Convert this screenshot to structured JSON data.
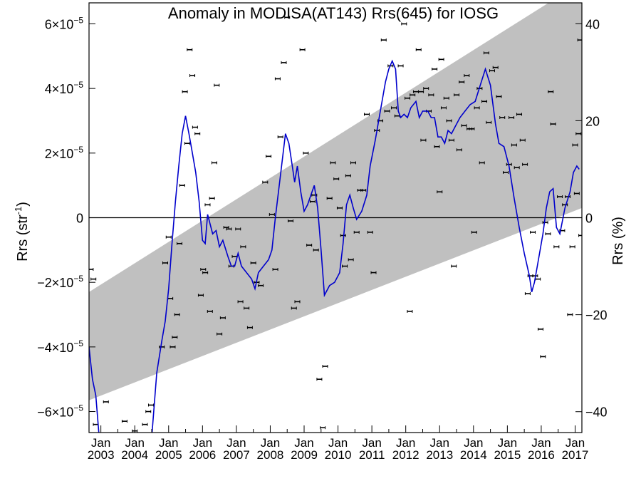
{
  "chart_data": {
    "type": "line",
    "title": "Anomaly in MODISA(AT143) Rrs(645) for IOSG",
    "ylabel": "Rrs (str",
    "ylabel_sup": "-1",
    "ylabel_right": "Rrs (%)",
    "ylim": [
      -6.65e-05,
      6.65e-05
    ],
    "ylim_right": [
      -44.3,
      44.3
    ],
    "x_range": [
      2002.65,
      2017.2
    ],
    "y_ticks": [
      {
        "value": 6e-05,
        "mantissa": "6",
        "sign": ""
      },
      {
        "value": 4e-05,
        "mantissa": "4",
        "sign": ""
      },
      {
        "value": 2e-05,
        "mantissa": "2",
        "sign": ""
      },
      {
        "value": 0,
        "label": "0"
      },
      {
        "value": -2e-05,
        "mantissa": "2",
        "sign": "−"
      },
      {
        "value": -4e-05,
        "mantissa": "4",
        "sign": "−"
      },
      {
        "value": -6e-05,
        "mantissa": "6",
        "sign": "−"
      }
    ],
    "y_tick_times": "×10",
    "y_tick_exp": "−5",
    "y_ticks_right": [
      {
        "value": 40,
        "label": "40"
      },
      {
        "value": 20,
        "label": "20"
      },
      {
        "value": 0,
        "label": "0"
      },
      {
        "value": -20,
        "label": "−20"
      },
      {
        "value": -40,
        "label": "−40"
      }
    ],
    "x_ticks": [
      {
        "x": 2003.0,
        "month": "Jan",
        "year": "2003"
      },
      {
        "x": 2004.0,
        "month": "Jan",
        "year": "2004"
      },
      {
        "x": 2005.0,
        "month": "Jan",
        "year": "2005"
      },
      {
        "x": 2006.0,
        "month": "Jan",
        "year": "2006"
      },
      {
        "x": 2007.0,
        "month": "Jan",
        "year": "2007"
      },
      {
        "x": 2008.0,
        "month": "Jan",
        "year": "2008"
      },
      {
        "x": 2009.0,
        "month": "Jan",
        "year": "2009"
      },
      {
        "x": 2010.0,
        "month": "Jan",
        "year": "2010"
      },
      {
        "x": 2011.0,
        "month": "Jan",
        "year": "2011"
      },
      {
        "x": 2012.0,
        "month": "Jan",
        "year": "2012"
      },
      {
        "x": 2013.0,
        "month": "Jan",
        "year": "2013"
      },
      {
        "x": 2014.0,
        "month": "Jan",
        "year": "2014"
      },
      {
        "x": 2015.0,
        "month": "Jan",
        "year": "2015"
      },
      {
        "x": 2016.0,
        "month": "Jan",
        "year": "2016"
      },
      {
        "x": 2017.0,
        "month": "Jan",
        "year": "2017"
      }
    ],
    "band": {
      "lower": [
        [
          2002.65,
          -5.65e-05
        ],
        [
          2017.2,
          3e-06
        ]
      ],
      "upper": [
        [
          2002.65,
          -2.3e-05
        ],
        [
          2017.2,
          7.3e-05
        ]
      ]
    },
    "zero_line": 0,
    "grid": false,
    "legend": "none",
    "colors": {
      "line": "#0000cc",
      "band": "#c0c0c0",
      "points": "#000000"
    },
    "smoothed_series": [
      [
        2002.65,
        -4e-05
      ],
      [
        2002.75,
        -5e-05
      ],
      [
        2002.85,
        -5.5e-05
      ],
      [
        2002.95,
        -6.8e-05
      ],
      [
        2004.5,
        -6.8e-05
      ],
      [
        2004.65,
        -4.8e-05
      ],
      [
        2004.8,
        -3.8e-05
      ],
      [
        2004.9,
        -3.2e-05
      ],
      [
        2005.0,
        -2.2e-05
      ],
      [
        2005.1,
        -8e-06
      ],
      [
        2005.2,
        5e-06
      ],
      [
        2005.3,
        1.6e-05
      ],
      [
        2005.4,
        2.6e-05
      ],
      [
        2005.5,
        3.15e-05
      ],
      [
        2005.6,
        2.6e-05
      ],
      [
        2005.7,
        2e-05
      ],
      [
        2005.8,
        1.4e-05
      ],
      [
        2005.9,
        5e-06
      ],
      [
        2006.0,
        -7e-06
      ],
      [
        2006.08,
        -8e-06
      ],
      [
        2006.15,
        1e-06
      ],
      [
        2006.3,
        -5e-06
      ],
      [
        2006.4,
        -4e-06
      ],
      [
        2006.5,
        -9e-06
      ],
      [
        2006.6,
        -7e-06
      ],
      [
        2006.75,
        -1.2e-05
      ],
      [
        2006.85,
        -1.5e-05
      ],
      [
        2006.95,
        -1.5e-05
      ],
      [
        2007.05,
        -1.1e-05
      ],
      [
        2007.15,
        -1.5e-05
      ],
      [
        2007.3,
        -1.7e-05
      ],
      [
        2007.45,
        -1.9e-05
      ],
      [
        2007.55,
        -2.2e-05
      ],
      [
        2007.65,
        -1.7e-05
      ],
      [
        2007.8,
        -1.5e-05
      ],
      [
        2007.95,
        -1.3e-05
      ],
      [
        2008.05,
        -1e-05
      ],
      [
        2008.15,
        0.0
      ],
      [
        2008.3,
        1.3e-05
      ],
      [
        2008.45,
        2.6e-05
      ],
      [
        2008.55,
        2.3e-05
      ],
      [
        2008.65,
        1.6e-05
      ],
      [
        2008.72,
        1.1e-05
      ],
      [
        2008.8,
        1.6e-05
      ],
      [
        2008.9,
        8e-06
      ],
      [
        2009.0,
        2e-06
      ],
      [
        2009.1,
        4e-06
      ],
      [
        2009.2,
        7e-06
      ],
      [
        2009.3,
        1e-05
      ],
      [
        2009.4,
        3e-06
      ],
      [
        2009.5,
        -1e-05
      ],
      [
        2009.6,
        -2.4e-05
      ],
      [
        2009.75,
        -2.1e-05
      ],
      [
        2009.9,
        -2e-05
      ],
      [
        2010.05,
        -1.7e-05
      ],
      [
        2010.15,
        -8e-06
      ],
      [
        2010.25,
        4e-06
      ],
      [
        2010.35,
        7e-06
      ],
      [
        2010.45,
        3e-06
      ],
      [
        2010.55,
        -5e-07
      ],
      [
        2010.7,
        2e-06
      ],
      [
        2010.85,
        7e-06
      ],
      [
        2010.95,
        1.6e-05
      ],
      [
        2011.1,
        2.4e-05
      ],
      [
        2011.25,
        3.3e-05
      ],
      [
        2011.4,
        4.2e-05
      ],
      [
        2011.5,
        4.6e-05
      ],
      [
        2011.6,
        4.85e-05
      ],
      [
        2011.7,
        4.6e-05
      ],
      [
        2011.78,
        3.3e-05
      ],
      [
        2011.85,
        3.1e-05
      ],
      [
        2011.95,
        3.2e-05
      ],
      [
        2012.05,
        3.1e-05
      ],
      [
        2012.15,
        3.4e-05
      ],
      [
        2012.3,
        3.6e-05
      ],
      [
        2012.4,
        3.1e-05
      ],
      [
        2012.5,
        3.3e-05
      ],
      [
        2012.65,
        3.3e-05
      ],
      [
        2012.75,
        3.1e-05
      ],
      [
        2012.85,
        3.1e-05
      ],
      [
        2012.95,
        2.5e-05
      ],
      [
        2013.05,
        2.5e-05
      ],
      [
        2013.15,
        2.3e-05
      ],
      [
        2013.25,
        2.7e-05
      ],
      [
        2013.35,
        2.6e-05
      ],
      [
        2013.45,
        2.8e-05
      ],
      [
        2013.6,
        3.1e-05
      ],
      [
        2013.75,
        3.3e-05
      ],
      [
        2013.9,
        3.5e-05
      ],
      [
        2014.05,
        3.6e-05
      ],
      [
        2014.2,
        4.1e-05
      ],
      [
        2014.35,
        4.6e-05
      ],
      [
        2014.5,
        4.1e-05
      ],
      [
        2014.65,
        2.9e-05
      ],
      [
        2014.75,
        2.3e-05
      ],
      [
        2014.9,
        2.2e-05
      ],
      [
        2015.05,
        1.6e-05
      ],
      [
        2015.2,
        6e-06
      ],
      [
        2015.35,
        -3e-06
      ],
      [
        2015.5,
        -1.1e-05
      ],
      [
        2015.65,
        -1.8e-05
      ],
      [
        2015.72,
        -2.3e-05
      ],
      [
        2015.8,
        -2e-05
      ],
      [
        2015.9,
        -1.4e-05
      ],
      [
        2016.05,
        -5e-06
      ],
      [
        2016.15,
        3e-06
      ],
      [
        2016.25,
        8e-06
      ],
      [
        2016.35,
        9e-06
      ],
      [
        2016.45,
        -3e-06
      ],
      [
        2016.55,
        -5e-06
      ],
      [
        2016.7,
        3e-06
      ],
      [
        2016.85,
        8e-06
      ],
      [
        2016.95,
        1.4e-05
      ],
      [
        2017.05,
        1.6e-05
      ],
      [
        2017.12,
        1.5e-05
      ]
    ],
    "monthly_points": [
      [
        2002.7,
        -1.6e-05
      ],
      [
        2002.78,
        -1.9e-05
      ],
      [
        2002.85,
        -6.4e-05
      ],
      [
        2003.15,
        -5.7e-05
      ],
      [
        2003.7,
        -6.3e-05
      ],
      [
        2004.0,
        -6.6e-05
      ],
      [
        2004.3,
        -6.4e-05
      ],
      [
        2004.4,
        -6e-05
      ],
      [
        2004.48,
        -5.8e-05
      ],
      [
        2004.8,
        -4e-05
      ],
      [
        2004.9,
        -1.4e-05
      ],
      [
        2005.0,
        -6e-06
      ],
      [
        2005.05,
        -2.5e-05
      ],
      [
        2005.12,
        -4e-05
      ],
      [
        2005.18,
        -3.7e-05
      ],
      [
        2005.25,
        -3e-05
      ],
      [
        2005.32,
        -8e-06
      ],
      [
        2005.4,
        1e-05
      ],
      [
        2005.48,
        3.9e-05
      ],
      [
        2005.55,
        2.3e-05
      ],
      [
        2005.62,
        5.2e-05
      ],
      [
        2005.7,
        4.4e-05
      ],
      [
        2005.78,
        2.8e-05
      ],
      [
        2005.85,
        2.6e-05
      ],
      [
        2005.95,
        -2.4e-05
      ],
      [
        2006.02,
        -1.6e-05
      ],
      [
        2006.08,
        -1.7e-05
      ],
      [
        2006.15,
        4e-06
      ],
      [
        2006.22,
        -2.9e-05
      ],
      [
        2006.28,
        6e-06
      ],
      [
        2006.35,
        1.7e-05
      ],
      [
        2006.42,
        4.1e-05
      ],
      [
        2006.5,
        -3.6e-05
      ],
      [
        2006.6,
        -3.1e-05
      ],
      [
        2006.7,
        -3e-06
      ],
      [
        2006.78,
        -3.5e-06
      ],
      [
        2006.85,
        -1.5e-05
      ],
      [
        2006.95,
        -1.2e-05
      ],
      [
        2007.05,
        -3.5e-06
      ],
      [
        2007.12,
        -2.6e-05
      ],
      [
        2007.2,
        -9e-06
      ],
      [
        2007.3,
        -2.8e-05
      ],
      [
        2007.4,
        -3.4e-05
      ],
      [
        2007.5,
        -1.4e-05
      ],
      [
        2007.6,
        -2e-05
      ],
      [
        2007.72,
        -2.1e-05
      ],
      [
        2007.85,
        1.1e-05
      ],
      [
        2007.95,
        1.9e-05
      ],
      [
        2008.05,
        1e-06
      ],
      [
        2008.15,
        -1.6e-05
      ],
      [
        2008.22,
        4.3e-05
      ],
      [
        2008.3,
        2.5e-05
      ],
      [
        2008.4,
        4.8e-05
      ],
      [
        2008.5,
        6.2e-05
      ],
      [
        2008.6,
        -1e-06
      ],
      [
        2008.7,
        -2.8e-05
      ],
      [
        2008.8,
        -2.6e-05
      ],
      [
        2008.95,
        5.2e-05
      ],
      [
        2009.05,
        2e-05
      ],
      [
        2009.15,
        -8.5e-06
      ],
      [
        2009.25,
        5e-06
      ],
      [
        2009.3,
        7e-06
      ],
      [
        2009.35,
        -1e-05
      ],
      [
        2009.45,
        -5e-05
      ],
      [
        2009.55,
        -6.5e-05
      ],
      [
        2009.62,
        -4.6e-05
      ],
      [
        2009.75,
        6e-06
      ],
      [
        2009.85,
        1.7e-05
      ],
      [
        2009.95,
        1.2e-05
      ],
      [
        2010.05,
        3e-06
      ],
      [
        2010.15,
        -5.5e-06
      ],
      [
        2010.2,
        -1.5e-05
      ],
      [
        2010.3,
        1.3e-05
      ],
      [
        2010.38,
        -1.3e-05
      ],
      [
        2010.45,
        1.7e-05
      ],
      [
        2010.55,
        -4.5e-06
      ],
      [
        2010.65,
        8.5e-06
      ],
      [
        2010.75,
        8.5e-06
      ],
      [
        2010.85,
        3.2e-05
      ],
      [
        2010.95,
        -4.5e-06
      ],
      [
        2011.05,
        -1.7e-05
      ],
      [
        2011.15,
        2.7e-05
      ],
      [
        2011.25,
        3e-05
      ],
      [
        2011.35,
        5.5e-05
      ],
      [
        2011.45,
        3.3e-05
      ],
      [
        2011.55,
        4.7e-05
      ],
      [
        2011.65,
        3.4e-05
      ],
      [
        2011.75,
        3.15e-05
      ],
      [
        2011.85,
        4.7e-05
      ],
      [
        2011.95,
        6e-05
      ],
      [
        2012.05,
        3.7e-05
      ],
      [
        2012.12,
        -2.9e-05
      ],
      [
        2012.2,
        3.8e-05
      ],
      [
        2012.3,
        3.9e-05
      ],
      [
        2012.38,
        5.2e-05
      ],
      [
        2012.45,
        3.9e-05
      ],
      [
        2012.52,
        2.4e-05
      ],
      [
        2012.6,
        4e-05
      ],
      [
        2012.68,
        3.3e-05
      ],
      [
        2012.75,
        3.8e-05
      ],
      [
        2012.85,
        4.6e-05
      ],
      [
        2012.92,
        2.2e-05
      ],
      [
        2013.0,
        8e-06
      ],
      [
        2013.05,
        4.9e-05
      ],
      [
        2013.12,
        3.4e-05
      ],
      [
        2013.2,
        3.7e-05
      ],
      [
        2013.28,
        3e-05
      ],
      [
        2013.35,
        2.4e-05
      ],
      [
        2013.42,
        -1.5e-05
      ],
      [
        2013.5,
        3.8e-05
      ],
      [
        2013.58,
        2.1e-05
      ],
      [
        2013.65,
        4.2e-05
      ],
      [
        2013.72,
        2.85e-05
      ],
      [
        2013.8,
        4.4e-05
      ],
      [
        2013.88,
        2.75e-05
      ],
      [
        2013.95,
        2.75e-05
      ],
      [
        2014.02,
        -4.5e-06
      ],
      [
        2014.1,
        3.4e-05
      ],
      [
        2014.18,
        4e-05
      ],
      [
        2014.25,
        1.7e-05
      ],
      [
        2014.32,
        3.6e-05
      ],
      [
        2014.38,
        5.1e-05
      ],
      [
        2014.45,
        2.95e-05
      ],
      [
        2014.55,
        4.55e-05
      ],
      [
        2014.65,
        4.65e-05
      ],
      [
        2014.75,
        3.75e-05
      ],
      [
        2014.85,
        3.1e-05
      ],
      [
        2014.95,
        1.4e-05
      ],
      [
        2015.05,
        1.65e-05
      ],
      [
        2015.12,
        3.1e-05
      ],
      [
        2015.2,
        2.25e-05
      ],
      [
        2015.28,
        1.55e-05
      ],
      [
        2015.35,
        3.2e-05
      ],
      [
        2015.45,
        2.4e-05
      ],
      [
        2015.52,
        1.65e-05
      ],
      [
        2015.6,
        -2.35e-05
      ],
      [
        2015.68,
        -1.8e-05
      ],
      [
        2015.75,
        -4.5e-06
      ],
      [
        2015.82,
        -1.8e-05
      ],
      [
        2015.9,
        -1.9e-05
      ],
      [
        2015.98,
        -3.45e-05
      ],
      [
        2016.05,
        -4.3e-05
      ],
      [
        2016.12,
        -1.5e-06
      ],
      [
        2016.2,
        -5e-06
      ],
      [
        2016.28,
        3.9e-05
      ],
      [
        2016.35,
        2.9e-05
      ],
      [
        2016.45,
        -9e-06
      ],
      [
        2016.55,
        6.5e-06
      ],
      [
        2016.62,
        -4e-06
      ],
      [
        2016.7,
        4e-06
      ],
      [
        2016.78,
        6.5e-06
      ],
      [
        2016.85,
        -3e-05
      ],
      [
        2016.92,
        -9e-06
      ],
      [
        2017.0,
        2.25e-05
      ],
      [
        2017.05,
        7.5e-06
      ],
      [
        2017.1,
        2.6e-05
      ],
      [
        2017.15,
        5.5e-05
      ],
      [
        2017.18,
        -5.5e-06
      ]
    ]
  }
}
